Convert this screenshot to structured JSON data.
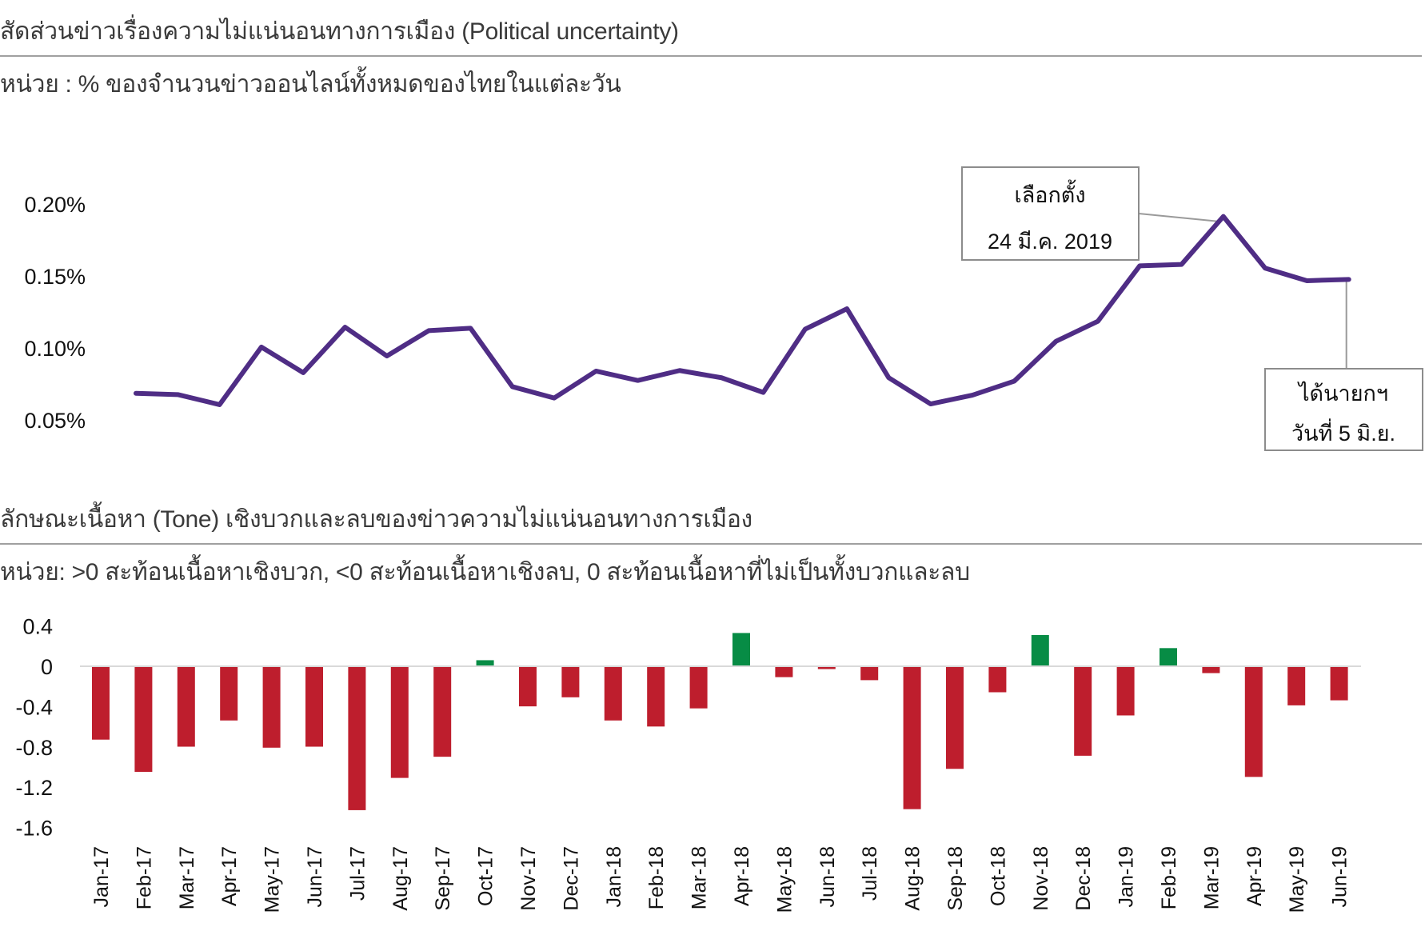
{
  "section1": {
    "title": "สัดส่วนข่าวเรื่องความไม่แน่นอนทางการเมือง (Political uncertainty)",
    "unit": "หน่วย : % ของจำนวนข่าวออนไลน์ทั้งหมดของไทยในแต่ละวัน"
  },
  "section2": {
    "title": "ลักษณะเนื้อหา (Tone) เชิงบวกและลบของข่าวความไม่แน่นอนทางการเมือง",
    "unit": "หน่วย: >0 สะท้อนเนื้อหาเชิงบวก, <0 สะท้อนเนื้อหาเชิงลบ, 0 สะท้อนเนื้อหาที่ไม่เป็นทั้งบวกและลบ"
  },
  "annotations": {
    "election": {
      "line1": "เลือกตั้ง",
      "line2": "24 มี.ค. 2019"
    },
    "pm": {
      "line1": "ได้นายกฯ",
      "line2": "วันที่ 5 มิ.ย."
    }
  },
  "colors": {
    "line": "#4f2d85",
    "negative_bar": "#be1e2d",
    "positive_bar": "#078c45",
    "zero_line": "#d9d9d9",
    "annotation_border": "#8c8c8c",
    "separator": "#a0a0a0"
  },
  "chart_data": [
    {
      "type": "line",
      "title": "สัดส่วนข่าวเรื่องความไม่แน่นอนทางการเมือง (Political uncertainty)",
      "ylabel": "% ของจำนวนข่าวออนไลน์ทั้งหมดของไทยในแต่ละวัน",
      "xlabel": "",
      "yticks": [
        "0.20%",
        "0.15%",
        "0.10%",
        "0.05%"
      ],
      "ylim": [
        0.05,
        0.2
      ],
      "grid": false,
      "categories": [
        "Jan-17",
        "Feb-17",
        "Mar-17",
        "Apr-17",
        "May-17",
        "Jun-17",
        "Jul-17",
        "Aug-17",
        "Sep-17",
        "Oct-17",
        "Nov-17",
        "Dec-17",
        "Jan-18",
        "Feb-18",
        "Mar-18",
        "Apr-18",
        "May-18",
        "Jun-18",
        "Jul-18",
        "Aug-18",
        "Sep-18",
        "Oct-18",
        "Nov-18",
        "Dec-18",
        "Jan-19",
        "Feb-19",
        "Mar-19",
        "Apr-19",
        "May-19",
        "Jun-19"
      ],
      "series": [
        {
          "name": "Political uncertainty",
          "values": [
            0.0685,
            0.0676,
            0.0606,
            0.1006,
            0.0828,
            0.1144,
            0.0944,
            0.112,
            0.1137,
            0.0731,
            0.0652,
            0.0839,
            0.0774,
            0.0843,
            0.0793,
            0.0691,
            0.113,
            0.1272,
            0.0793,
            0.0611,
            0.0672,
            0.0769,
            0.1046,
            0.1185,
            0.157,
            0.158,
            0.1913,
            0.1554,
            0.1467,
            0.1476
          ]
        }
      ],
      "annotations": [
        {
          "category": "Mar-19",
          "text": "เลือกตั้ง 24 มี.ค. 2019"
        },
        {
          "category": "Jun-19",
          "text": "ได้นายกฯ วันที่ 5 มิ.ย."
        }
      ]
    },
    {
      "type": "bar",
      "title": "ลักษณะเนื้อหา (Tone) เชิงบวกและลบของข่าวความไม่แน่นอนทางการเมือง",
      "ylabel": ">0 สะท้อนเนื้อหาเชิงบวก, <0 สะท้อนเนื้อหาเชิงลบ, 0 สะท้อนเนื้อหาที่ไม่เป็นทั้งบวกและลบ",
      "xlabel": "",
      "yticks": [
        "0.4",
        "0",
        "-0.4",
        "-0.8",
        "-1.2",
        "-1.6"
      ],
      "ylim": [
        -1.6,
        0.4
      ],
      "grid": false,
      "categories": [
        "Jan-17",
        "Feb-17",
        "Mar-17",
        "Apr-17",
        "May-17",
        "Jun-17",
        "Jul-17",
        "Aug-17",
        "Sep-17",
        "Oct-17",
        "Nov-17",
        "Dec-17",
        "Jan-18",
        "Feb-18",
        "Mar-18",
        "Apr-18",
        "May-18",
        "Jun-18",
        "Jul-18",
        "Aug-18",
        "Sep-18",
        "Oct-18",
        "Nov-18",
        "Dec-18",
        "Jan-19",
        "Feb-19",
        "Mar-19",
        "Apr-19",
        "May-19",
        "Jun-19"
      ],
      "values": [
        -0.72,
        -1.04,
        -0.79,
        -0.53,
        -0.8,
        -0.79,
        -1.42,
        -1.1,
        -0.89,
        0.06,
        -0.39,
        -0.3,
        -0.53,
        -0.59,
        -0.41,
        0.33,
        -0.1,
        -0.02,
        -0.13,
        -1.41,
        -1.01,
        -0.25,
        0.31,
        -0.88,
        -0.48,
        0.18,
        -0.06,
        -1.09,
        -0.38,
        -0.33
      ]
    }
  ]
}
